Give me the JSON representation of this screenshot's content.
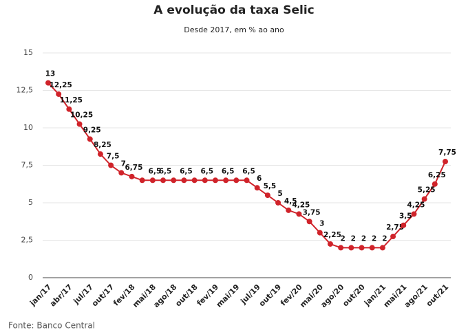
{
  "chart_data": {
    "type": "line",
    "title": "A evolução da taxa Selic",
    "subtitle": "Desde 2017, em % ao ano",
    "source": "Fonte: Banco Central",
    "color": "#d0232a",
    "categories": [
      "jan/17",
      null,
      "abr/17",
      null,
      "jul/17",
      null,
      "out/17",
      null,
      "fev/18",
      null,
      "mai/18",
      null,
      "ago/18",
      null,
      "out/18",
      null,
      "fev/19",
      null,
      "mai/19",
      null,
      "jul/19",
      null,
      "out/19",
      null,
      "fev/20",
      null,
      "mai/20",
      null,
      "ago/20",
      null,
      "out/20",
      null,
      "jan/21",
      null,
      "mai/21",
      null,
      "ago/21",
      null,
      "out/21"
    ],
    "values": [
      13,
      12.25,
      11.25,
      10.25,
      9.25,
      8.25,
      7.5,
      7,
      6.75,
      6.5,
      6.5,
      6.5,
      6.5,
      6.5,
      6.5,
      6.5,
      6.5,
      6.5,
      6.5,
      6.5,
      6,
      5.5,
      5,
      4.5,
      4.25,
      3.75,
      3,
      2.25,
      2,
      2,
      2,
      2,
      2,
      2.75,
      3.5,
      4.25,
      5.25,
      6.25,
      7.75
    ],
    "value_labels": [
      "13",
      "12,25",
      "11,25",
      "10,25",
      "9,25",
      "8,25",
      "7,5",
      "7",
      "6,75",
      null,
      "6,5",
      "6,5",
      null,
      "6,5",
      null,
      "6,5",
      null,
      "6,5",
      null,
      "6,5",
      "6",
      "5,5",
      "5",
      "4,5",
      "4,25",
      "3,75",
      "3",
      "2,25",
      "2",
      "2",
      "2",
      "2",
      "2",
      "2,75",
      "3,5",
      "4,25",
      "5,25",
      "6,25",
      "7,75"
    ],
    "ylim": [
      0,
      15
    ],
    "yticks": [
      0,
      {
        "value": 2.5,
        "label": "2,5"
      },
      5,
      {
        "value": 7.5,
        "label": "7,5"
      },
      10,
      {
        "value": 12.5,
        "label": "12,5"
      },
      15
    ],
    "grid": true
  }
}
